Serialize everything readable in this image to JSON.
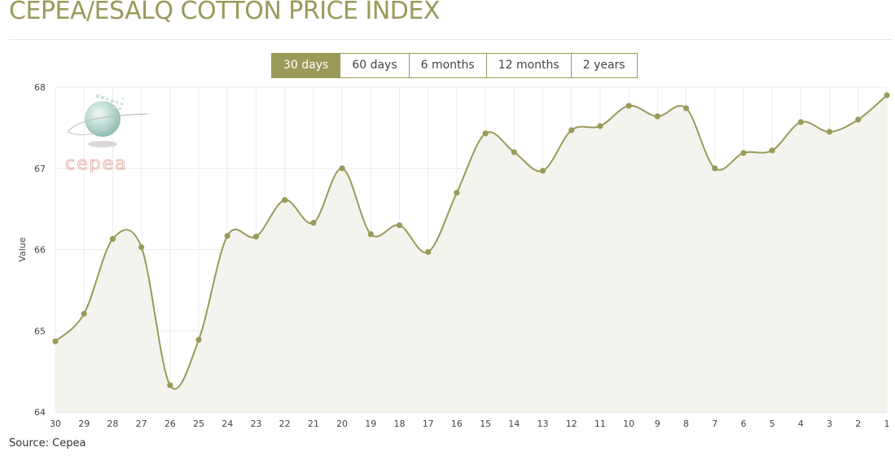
{
  "header": {
    "title": "CEPEA/ESALQ COTTON PRICE INDEX"
  },
  "range_tabs": [
    {
      "label": "30 days",
      "active": true
    },
    {
      "label": "60 days",
      "active": false
    },
    {
      "label": "6 months",
      "active": false
    },
    {
      "label": "12 months",
      "active": false
    },
    {
      "label": "2 years",
      "active": false
    }
  ],
  "logo": {
    "text": "cepea"
  },
  "colors": {
    "accent": "#9a9a5a",
    "line": "#9a9a5a",
    "area_fill": "#f4f4ee",
    "grid": "#ececec",
    "logo_text": "#e8b8b0"
  },
  "footer": {
    "source": "Source: Cepea"
  },
  "chart_data": {
    "type": "area",
    "ylabel": "Value",
    "xlabel": "",
    "ylim": [
      64,
      68
    ],
    "yticks": [
      64,
      65,
      66,
      67,
      68
    ],
    "grid": true,
    "x": [
      "30",
      "29",
      "28",
      "27",
      "26",
      "25",
      "24",
      "23",
      "22",
      "21",
      "20",
      "19",
      "18",
      "17",
      "16",
      "15",
      "14",
      "13",
      "12",
      "11",
      "10",
      "9",
      "8",
      "7",
      "6",
      "5",
      "4",
      "3",
      "2",
      "1"
    ],
    "series": [
      {
        "values": [
          64.87,
          65.21,
          66.13,
          66.03,
          64.33,
          64.89,
          66.17,
          66.16,
          66.61,
          66.33,
          67.0,
          66.19,
          66.3,
          65.97,
          66.7,
          67.43,
          67.2,
          66.97,
          67.47,
          67.52,
          67.77,
          67.64,
          67.74,
          67.0,
          67.19,
          67.22,
          67.57,
          67.45,
          67.6,
          67.9
        ]
      }
    ]
  }
}
